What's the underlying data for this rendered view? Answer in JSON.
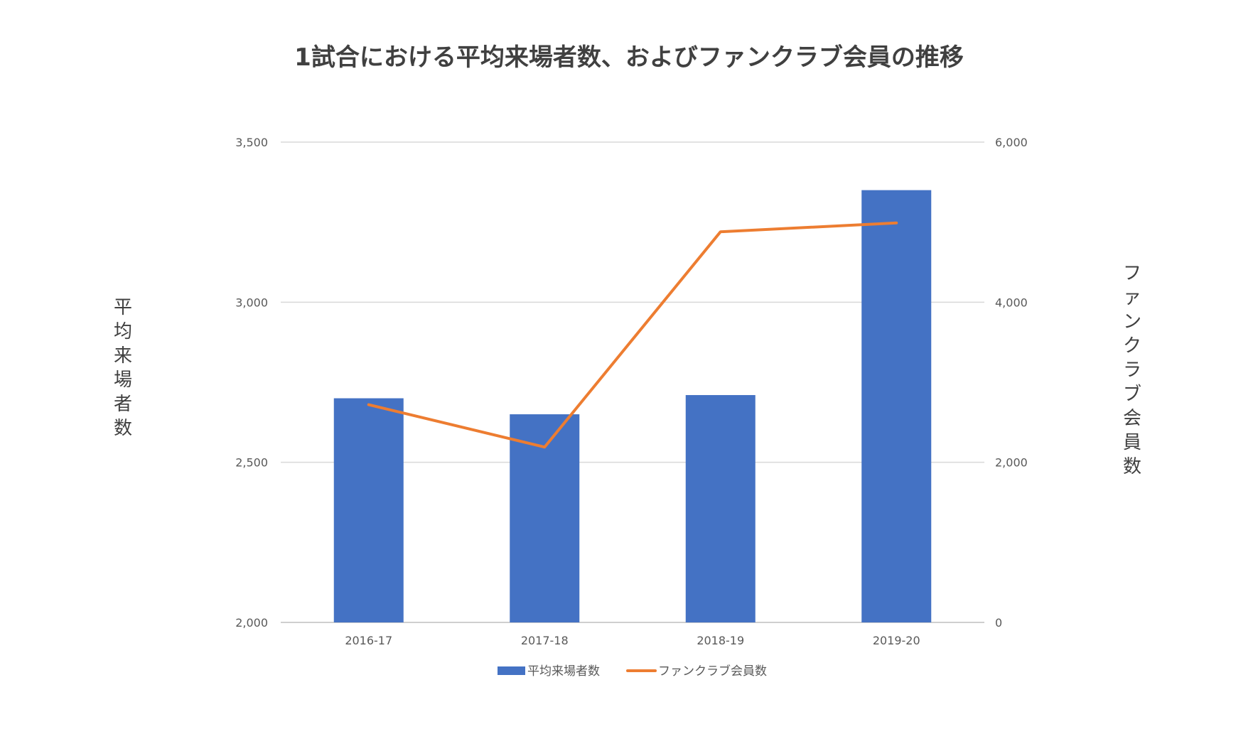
{
  "chart_data": {
    "type": "bar",
    "title": "1試合における平均来場者数、およびファンクラブ会員の推移",
    "categories": [
      "2016-17",
      "2017-18",
      "2018-19",
      "2019-20"
    ],
    "series": [
      {
        "name": "平均来場者数",
        "type": "bar",
        "axis": "left",
        "color": "#4472C4",
        "values": [
          2700,
          2650,
          2710,
          3350
        ]
      },
      {
        "name": "ファンクラブ会員数",
        "type": "line",
        "axis": "right",
        "color": "#ED7D31",
        "values": [
          2720,
          2190,
          4880,
          4990
        ]
      }
    ],
    "y_left": {
      "label": "平均来場者数",
      "range": [
        2000,
        3500
      ],
      "ticks": [
        2000,
        2500,
        3000,
        3500
      ],
      "tick_labels": [
        "2,000",
        "2,500",
        "3,000",
        "3,500"
      ]
    },
    "y_right": {
      "label": "ファンクラブ会員数",
      "range": [
        0,
        6000
      ],
      "ticks": [
        0,
        2000,
        4000,
        6000
      ],
      "tick_labels": [
        "0",
        "2,000",
        "4,000",
        "6,000"
      ]
    },
    "grid": true,
    "legend_position": "bottom"
  }
}
